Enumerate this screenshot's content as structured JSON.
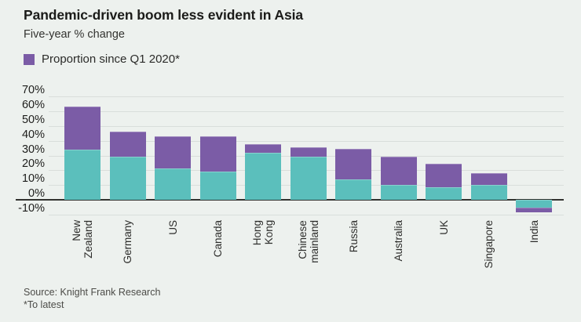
{
  "title": "Pandemic-driven boom less evident in Asia",
  "subtitle": "Five-year % change",
  "legend": {
    "label": "Proportion since Q1 2020*",
    "swatch_color": "#7b5ca6"
  },
  "source": "Source: Knight Frank Research",
  "footnote": "*To latest",
  "colors": {
    "background": "#edf1ee",
    "teal_series": "#5bbfbc",
    "purple_series": "#7b5ca6",
    "gridline": "#d9dedb",
    "baseline": "#32322f",
    "text_dark": "#1b1b19"
  },
  "chart_data": {
    "type": "bar",
    "stacked": true,
    "title": "Pandemic-driven boom less evident in Asia",
    "subtitle": "Five-year % change",
    "categories": [
      "New\nZealand",
      "Germany",
      "US",
      "Canada",
      "Hong\nKong",
      "Chinese\nmainland",
      "Russia",
      "Australia",
      "UK",
      "Singapore",
      "India"
    ],
    "series": [
      {
        "name": "",
        "legend_shown": false,
        "color": "#5bbfbc",
        "values": [
          34,
          29,
          21.5,
          19,
          32,
          29,
          14,
          10,
          8.5,
          10,
          -5
        ]
      },
      {
        "name": "Proportion since Q1 2020*",
        "legend_shown": true,
        "color": "#7b5ca6",
        "values": [
          29,
          17,
          21.5,
          24,
          5.5,
          6.5,
          20.5,
          19,
          16,
          8,
          -3.2
        ]
      }
    ],
    "five_year_change_total": [
      63,
      46,
      43,
      43,
      37.5,
      35.5,
      34.5,
      29,
      24.5,
      18,
      -8.2
    ],
    "yticks": [
      70,
      60,
      50,
      40,
      30,
      20,
      10,
      0,
      -10
    ],
    "ytick_suffix": "%",
    "ylim": [
      -10,
      70
    ],
    "grid": true,
    "legend_position": "top-left"
  }
}
